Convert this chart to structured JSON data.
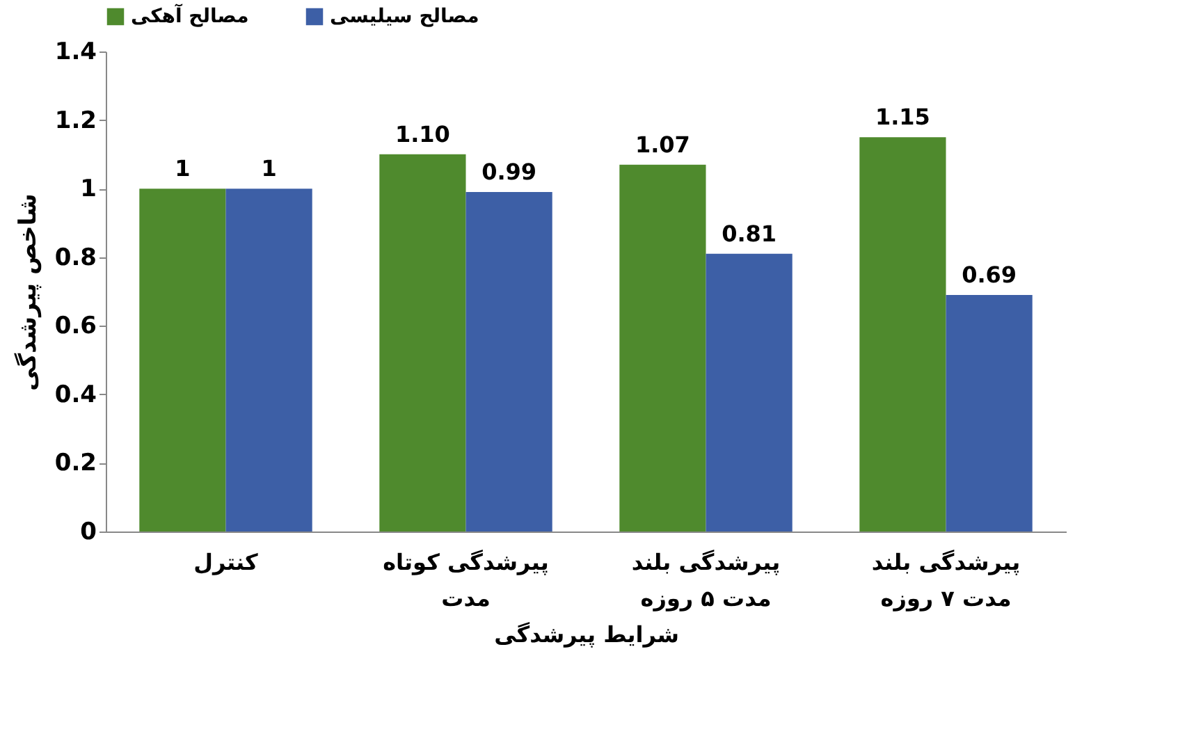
{
  "chart_data": {
    "type": "bar",
    "categories": [
      "کنترل",
      "پیرشدگی کوتاه مدت",
      "پیرشدگی بلند مدت ۵ روزه",
      "پیرشدگی بلند مدت ۷ روزه"
    ],
    "series": [
      {
        "name": "مصالح آهکی",
        "color": "#4f8a2d",
        "values": [
          1,
          1.1,
          1.07,
          1.15
        ],
        "value_labels": [
          "1",
          "1.10",
          "1.07",
          "1.15"
        ]
      },
      {
        "name": "مصالح سیلیسی",
        "color": "#3d5fa6",
        "values": [
          1,
          0.99,
          0.81,
          0.69
        ],
        "value_labels": [
          "1",
          "0.99",
          "0.81",
          "0.69"
        ]
      }
    ],
    "xlabel": "شرایط پیرشدگی",
    "ylabel": "شاخص پیرشدگی",
    "ylim": [
      0,
      1.4
    ],
    "yticks": [
      0,
      0.2,
      0.4,
      0.6,
      0.8,
      1,
      1.2,
      1.4
    ],
    "legend": "top",
    "grid": false
  }
}
